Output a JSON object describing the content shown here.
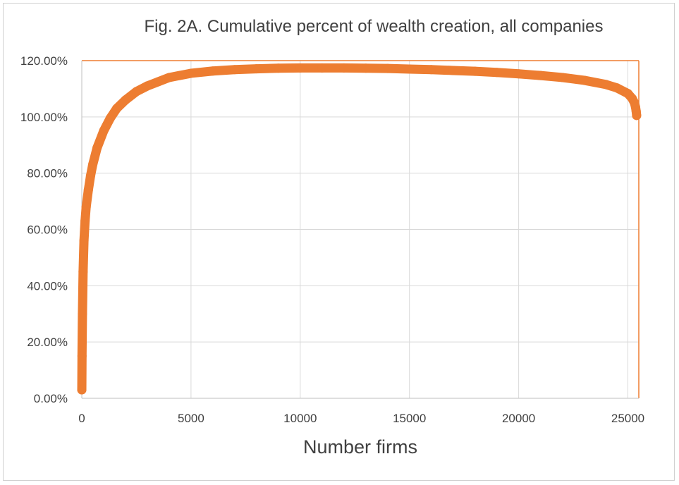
{
  "chart_data": {
    "type": "scatter",
    "title": "Fig. 2A. Cumulative percent of wealth creation, all companies",
    "xlabel": "Number firms",
    "ylabel": "",
    "xlim": [
      0,
      25500
    ],
    "ylim": [
      0,
      120
    ],
    "x_ticks": [
      "0",
      "5000",
      "10000",
      "15000",
      "20000",
      "25000"
    ],
    "y_ticks": [
      "0.00%",
      "20.00%",
      "40.00%",
      "60.00%",
      "80.00%",
      "100.00%",
      "120.00%"
    ],
    "grid": true,
    "legend": "none",
    "series": [
      {
        "color": "#ED7D31",
        "marker": "circle",
        "x": [
          1,
          10,
          30,
          60,
          100,
          150,
          200,
          300,
          400,
          500,
          700,
          1000,
          1300,
          1600,
          2000,
          2500,
          3000,
          3500,
          4000,
          5000,
          6000,
          7000,
          8000,
          9000,
          10000,
          11000,
          12000,
          13000,
          14000,
          15000,
          16000,
          17000,
          18000,
          19000,
          20000,
          21000,
          22000,
          23000,
          24000,
          24500,
          25000,
          25200,
          25300,
          25350,
          25380,
          25400
        ],
        "y": [
          3,
          15,
          30,
          45,
          56,
          63,
          68,
          74,
          79,
          83,
          89,
          95,
          99.5,
          103,
          106,
          109,
          111,
          112.5,
          114,
          115.5,
          116.3,
          116.8,
          117.1,
          117.3,
          117.4,
          117.4,
          117.4,
          117.3,
          117.2,
          117.0,
          116.8,
          116.5,
          116.2,
          115.8,
          115.3,
          114.7,
          114.0,
          113.0,
          111.5,
          110.3,
          108.3,
          106.5,
          105.0,
          103.5,
          102.0,
          100.5
        ]
      }
    ]
  }
}
